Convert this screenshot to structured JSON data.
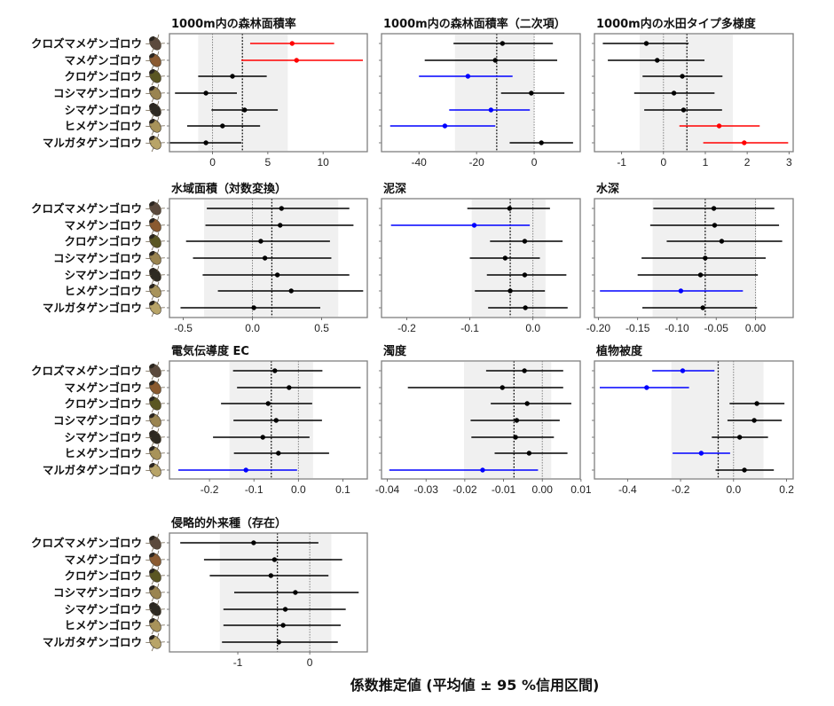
{
  "chart_data": {
    "type": "forest",
    "xlabel": "係数推定値 (平均値 ± 95 %信用区間)",
    "species": [
      "クロズマメゲンゴロウ",
      "マメゲンゴロウ",
      "クロゲンゴロウ",
      "コシマゲンゴロウ",
      "シマゲンゴロウ",
      "ヒメゲンゴロウ",
      "マルガタゲンゴロウ"
    ],
    "colors": {
      "neutral": "#000000",
      "positive": "#ff0000",
      "negative": "#0000ff",
      "band": "#f0f0f0",
      "frame": "#7f7f7f"
    },
    "panels": [
      {
        "title": "1000m内の森林面積率",
        "xlim": [
          -3.9,
          14.0
        ],
        "ticks": [
          0,
          5,
          10
        ],
        "tick_labels": [
          "0",
          "5",
          "10"
        ],
        "mean_line": 2.7,
        "band": [
          -1.3,
          6.8
        ],
        "series": [
          {
            "mean": 7.2,
            "lo": 3.4,
            "hi": 11.0,
            "sig": "positive"
          },
          {
            "mean": 7.6,
            "lo": 2.6,
            "hi": 13.6,
            "sig": "positive"
          },
          {
            "mean": 1.8,
            "lo": -1.3,
            "hi": 4.9,
            "sig": "neutral"
          },
          {
            "mean": -0.6,
            "lo": -3.4,
            "hi": 2.2,
            "sig": "neutral"
          },
          {
            "mean": 2.9,
            "lo": -0.1,
            "hi": 5.9,
            "sig": "neutral"
          },
          {
            "mean": 0.9,
            "lo": -2.3,
            "hi": 4.3,
            "sig": "neutral"
          },
          {
            "mean": -0.6,
            "lo": -3.9,
            "hi": 2.6,
            "sig": "neutral"
          }
        ]
      },
      {
        "title": "1000m内の森林面積率（二次項）",
        "xlim": [
          -53,
          16
        ],
        "ticks": [
          -40,
          -20,
          0
        ],
        "tick_labels": [
          "-40",
          "-20",
          "0"
        ],
        "mean_line": -13,
        "band": [
          -27.5,
          0
        ],
        "series": [
          {
            "mean": -11,
            "lo": -28,
            "hi": 6.5,
            "sig": "neutral"
          },
          {
            "mean": -13.5,
            "lo": -38,
            "hi": 8,
            "sig": "neutral"
          },
          {
            "mean": -23,
            "lo": -40,
            "hi": -7.5,
            "sig": "negative"
          },
          {
            "mean": -1,
            "lo": -11.5,
            "hi": 10.5,
            "sig": "neutral"
          },
          {
            "mean": -15,
            "lo": -29.5,
            "hi": -1.5,
            "sig": "negative"
          },
          {
            "mean": -31,
            "lo": -50,
            "hi": -13.5,
            "sig": "negative"
          },
          {
            "mean": 2.5,
            "lo": -8.5,
            "hi": 13.5,
            "sig": "neutral"
          }
        ]
      },
      {
        "title": "1000m内の水田タイプ多様度",
        "xlim": [
          -1.65,
          3.1
        ],
        "ticks": [
          -1,
          0,
          1,
          2,
          3
        ],
        "tick_labels": [
          "-1",
          "0",
          "1",
          "2",
          "3"
        ],
        "mean_line": 0.56,
        "band": [
          -0.57,
          1.66
        ],
        "series": [
          {
            "mean": -0.41,
            "lo": -1.45,
            "hi": 0.6,
            "sig": "neutral"
          },
          {
            "mean": -0.15,
            "lo": -1.33,
            "hi": 0.98,
            "sig": "neutral"
          },
          {
            "mean": 0.45,
            "lo": -0.5,
            "hi": 1.41,
            "sig": "neutral"
          },
          {
            "mean": 0.25,
            "lo": -0.7,
            "hi": 1.22,
            "sig": "neutral"
          },
          {
            "mean": 0.48,
            "lo": -0.46,
            "hi": 1.4,
            "sig": "neutral"
          },
          {
            "mean": 1.33,
            "lo": 0.38,
            "hi": 2.3,
            "sig": "positive"
          },
          {
            "mean": 1.93,
            "lo": 0.95,
            "hi": 2.98,
            "sig": "positive"
          }
        ]
      },
      {
        "title": "水域面積（対数変換）",
        "xlim": [
          -0.6,
          0.83
        ],
        "ticks": [
          -0.5,
          0.0,
          0.5
        ],
        "tick_labels": [
          "-0.5",
          "0.0",
          "0.5"
        ],
        "mean_line": 0.14,
        "band": [
          -0.35,
          0.62
        ],
        "series": [
          {
            "mean": 0.21,
            "lo": -0.33,
            "hi": 0.7,
            "sig": "neutral"
          },
          {
            "mean": 0.2,
            "lo": -0.34,
            "hi": 0.73,
            "sig": "neutral"
          },
          {
            "mean": 0.06,
            "lo": -0.48,
            "hi": 0.56,
            "sig": "neutral"
          },
          {
            "mean": 0.09,
            "lo": -0.43,
            "hi": 0.57,
            "sig": "neutral"
          },
          {
            "mean": 0.18,
            "lo": -0.36,
            "hi": 0.7,
            "sig": "neutral"
          },
          {
            "mean": 0.28,
            "lo": -0.25,
            "hi": 0.8,
            "sig": "neutral"
          },
          {
            "mean": 0.01,
            "lo": -0.52,
            "hi": 0.49,
            "sig": "neutral"
          }
        ]
      },
      {
        "title": "泥深",
        "xlim": [
          -0.24,
          0.075
        ],
        "ticks": [
          -0.2,
          -0.1,
          0.0
        ],
        "tick_labels": [
          "-0.2",
          "-0.1",
          "0.0"
        ],
        "mean_line": -0.036,
        "band": [
          -0.097,
          0.02
        ],
        "series": [
          {
            "mean": -0.037,
            "lo": -0.104,
            "hi": 0.027,
            "sig": "neutral"
          },
          {
            "mean": -0.093,
            "lo": -0.225,
            "hi": -0.005,
            "sig": "negative"
          },
          {
            "mean": -0.013,
            "lo": -0.068,
            "hi": 0.047,
            "sig": "neutral"
          },
          {
            "mean": -0.044,
            "lo": -0.1,
            "hi": 0.011,
            "sig": "neutral"
          },
          {
            "mean": -0.013,
            "lo": -0.073,
            "hi": 0.053,
            "sig": "neutral"
          },
          {
            "mean": -0.036,
            "lo": -0.092,
            "hi": 0.019,
            "sig": "neutral"
          },
          {
            "mean": -0.012,
            "lo": -0.071,
            "hi": 0.055,
            "sig": "neutral"
          }
        ]
      },
      {
        "title": "水深",
        "xlim": [
          -0.205,
          0.048
        ],
        "ticks": [
          -0.2,
          -0.15,
          -0.1,
          -0.05,
          0.0
        ],
        "tick_labels": [
          "-0.20",
          "-0.15",
          "-0.10",
          "-0.05",
          "0.00"
        ],
        "mean_line": -0.064,
        "band": [
          -0.131,
          0.001
        ],
        "series": [
          {
            "mean": -0.053,
            "lo": -0.13,
            "hi": 0.024,
            "sig": "neutral"
          },
          {
            "mean": -0.052,
            "lo": -0.134,
            "hi": 0.03,
            "sig": "neutral"
          },
          {
            "mean": -0.043,
            "lo": -0.113,
            "hi": 0.034,
            "sig": "neutral"
          },
          {
            "mean": -0.064,
            "lo": -0.145,
            "hi": 0.013,
            "sig": "neutral"
          },
          {
            "mean": -0.07,
            "lo": -0.15,
            "hi": 0.003,
            "sig": "neutral"
          },
          {
            "mean": -0.095,
            "lo": -0.198,
            "hi": -0.016,
            "sig": "negative"
          },
          {
            "mean": -0.067,
            "lo": -0.144,
            "hi": 0.002,
            "sig": "neutral"
          }
        ]
      },
      {
        "title": "電気伝導度 EC",
        "xlim": [
          -0.29,
          0.155
        ],
        "ticks": [
          -0.2,
          -0.1,
          0.0,
          0.1
        ],
        "tick_labels": [
          "-0.2",
          "-0.1",
          "0.0",
          "0.1"
        ],
        "mean_line": -0.061,
        "band": [
          -0.155,
          0.033
        ],
        "series": [
          {
            "mean": -0.053,
            "lo": -0.147,
            "hi": 0.054,
            "sig": "neutral"
          },
          {
            "mean": -0.021,
            "lo": -0.138,
            "hi": 0.14,
            "sig": "neutral"
          },
          {
            "mean": -0.068,
            "lo": -0.174,
            "hi": 0.031,
            "sig": "neutral"
          },
          {
            "mean": -0.05,
            "lo": -0.146,
            "hi": 0.053,
            "sig": "neutral"
          },
          {
            "mean": -0.08,
            "lo": -0.192,
            "hi": 0.025,
            "sig": "neutral"
          },
          {
            "mean": -0.045,
            "lo": -0.145,
            "hi": 0.069,
            "sig": "neutral"
          },
          {
            "mean": -0.118,
            "lo": -0.27,
            "hi": -0.003,
            "sig": "negative"
          }
        ]
      },
      {
        "title": "濁度",
        "xlim": [
          -0.0415,
          0.0098
        ],
        "ticks": [
          -0.04,
          -0.03,
          -0.02,
          -0.01,
          0.0,
          0.01
        ],
        "tick_labels": [
          "-0.04",
          "-0.03",
          "-0.02",
          "-0.01",
          "0.00",
          "0.01"
        ],
        "mean_line": -0.0073,
        "band": [
          -0.0202,
          0.0023
        ],
        "series": [
          {
            "mean": -0.0046,
            "lo": -0.0145,
            "hi": 0.0054,
            "sig": "neutral"
          },
          {
            "mean": -0.0103,
            "lo": -0.0347,
            "hi": 0.0054,
            "sig": "neutral"
          },
          {
            "mean": -0.0039,
            "lo": -0.0133,
            "hi": 0.0075,
            "sig": "neutral"
          },
          {
            "mean": -0.0066,
            "lo": -0.0185,
            "hi": 0.0045,
            "sig": "neutral"
          },
          {
            "mean": -0.0069,
            "lo": -0.0183,
            "hi": 0.003,
            "sig": "neutral"
          },
          {
            "mean": -0.0034,
            "lo": -0.0123,
            "hi": 0.0065,
            "sig": "neutral"
          },
          {
            "mean": -0.0154,
            "lo": -0.0395,
            "hi": -0.0011,
            "sig": "negative"
          }
        ]
      },
      {
        "title": "植物被度",
        "xlim": [
          -0.525,
          0.225
        ],
        "ticks": [
          -0.4,
          -0.2,
          0.0,
          0.2
        ],
        "tick_labels": [
          "-0.4",
          "-0.2",
          "0.0",
          "0.2"
        ],
        "mean_line": -0.058,
        "band": [
          -0.235,
          0.113
        ],
        "series": [
          {
            "mean": -0.192,
            "lo": -0.307,
            "hi": -0.072,
            "sig": "negative"
          },
          {
            "mean": -0.328,
            "lo": -0.505,
            "hi": -0.168,
            "sig": "negative"
          },
          {
            "mean": 0.088,
            "lo": -0.015,
            "hi": 0.192,
            "sig": "neutral"
          },
          {
            "mean": 0.078,
            "lo": -0.023,
            "hi": 0.182,
            "sig": "neutral"
          },
          {
            "mean": 0.023,
            "lo": -0.082,
            "hi": 0.13,
            "sig": "neutral"
          },
          {
            "mean": -0.122,
            "lo": -0.23,
            "hi": -0.013,
            "sig": "negative"
          },
          {
            "mean": 0.041,
            "lo": -0.068,
            "hi": 0.152,
            "sig": "neutral"
          }
        ]
      },
      {
        "title": "侵略的外来種（存在）",
        "xlim": [
          -1.95,
          0.8
        ],
        "ticks": [
          -1,
          0
        ],
        "tick_labels": [
          "-1",
          "0"
        ],
        "mean_line": -0.45,
        "band": [
          -1.25,
          0.3
        ],
        "series": [
          {
            "mean": -0.78,
            "lo": -1.8,
            "hi": 0.12,
            "sig": "neutral"
          },
          {
            "mean": -0.49,
            "lo": -1.47,
            "hi": 0.45,
            "sig": "neutral"
          },
          {
            "mean": -0.54,
            "lo": -1.39,
            "hi": 0.26,
            "sig": "neutral"
          },
          {
            "mean": -0.2,
            "lo": -1.05,
            "hi": 0.68,
            "sig": "neutral"
          },
          {
            "mean": -0.34,
            "lo": -1.2,
            "hi": 0.5,
            "sig": "neutral"
          },
          {
            "mean": -0.37,
            "lo": -1.2,
            "hi": 0.43,
            "sig": "neutral"
          },
          {
            "mean": -0.43,
            "lo": -1.22,
            "hi": 0.39,
            "sig": "neutral"
          }
        ]
      }
    ]
  },
  "figure": {
    "xlabel": "係数推定値 (平均値 ± 95 %信用区間)",
    "beetle_icons": [
      {
        "name": "kurozumamegengorou-icon",
        "color": "#5b4a3d"
      },
      {
        "name": "mamegengorou-icon",
        "color": "#8a5a30"
      },
      {
        "name": "kurogengorou-icon",
        "color": "#5a5622"
      },
      {
        "name": "koshimagengorou-icon",
        "color": "#9a8450"
      },
      {
        "name": "shimagengorou-icon",
        "color": "#2e2a22"
      },
      {
        "name": "himegengorou-icon",
        "color": "#a8935a"
      },
      {
        "name": "marugatagengorou-icon",
        "color": "#b8a468"
      }
    ]
  }
}
